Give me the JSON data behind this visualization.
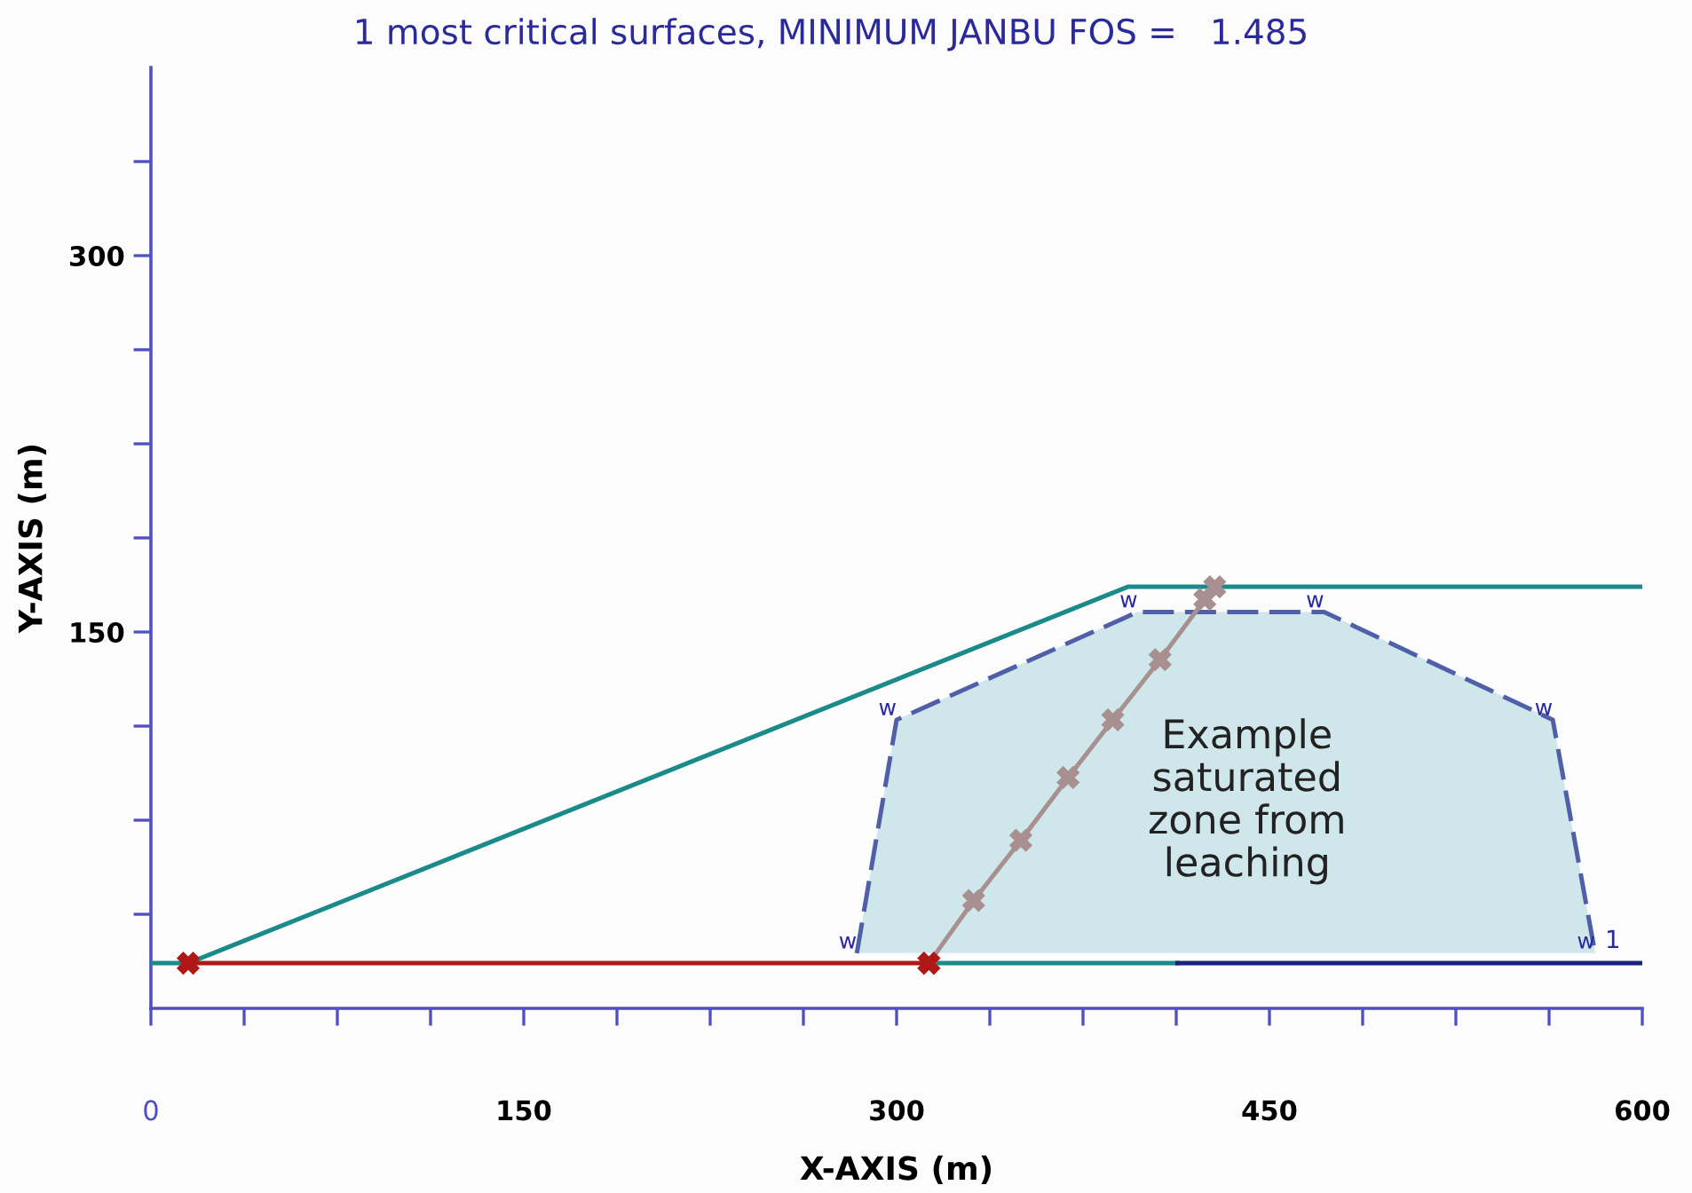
{
  "chart_data": {
    "type": "line",
    "title": "1 most critical surfaces, MINIMUM JANBU FOS =   1.485",
    "xlabel": "X-AXIS (m)",
    "ylabel": "Y-AXIS (m)",
    "xlim": [
      0,
      600
    ],
    "ylim": [
      0,
      375
    ],
    "xticks": [
      0,
      {
        "value": 37.5,
        "label": null
      },
      {
        "value": 75,
        "label": null
      },
      {
        "value": 112.5,
        "label": null
      },
      150,
      {
        "value": 187.5,
        "label": null
      },
      {
        "value": 225,
        "label": null
      },
      {
        "value": 262.5,
        "label": null
      },
      300,
      {
        "value": 337.5,
        "label": null
      },
      {
        "value": 375,
        "label": null
      },
      {
        "value": 412.5,
        "label": null
      },
      450,
      {
        "value": 487.5,
        "label": null
      },
      {
        "value": 525,
        "label": null
      },
      {
        "value": 562.5,
        "label": null
      },
      600
    ],
    "yticks": [
      {
        "value": 37.5,
        "label": null
      },
      {
        "value": 75,
        "label": null
      },
      {
        "value": 112.5,
        "label": null
      },
      150,
      {
        "value": 187.5,
        "label": null
      },
      {
        "value": 225,
        "label": null
      },
      {
        "value": 262.5,
        "label": null
      },
      300,
      {
        "value": 337.5,
        "label": null
      }
    ],
    "grid": false,
    "legend": false,
    "series": [
      {
        "type": "area",
        "color": "#cfe6ea",
        "line_style": "dashed",
        "x": [
          284,
          300,
          397,
          472,
          564,
          581
        ],
        "values": [
          22,
          115,
          158,
          158,
          115,
          22
        ]
      },
      {
        "color": "#1a8a8a",
        "line_style": "solid",
        "marker": "none",
        "x": [
          0,
          15
        ],
        "values": [
          18,
          18
        ]
      },
      {
        "color": "#1a8a8a",
        "line_style": "solid",
        "marker": "none",
        "x": [
          313,
          413
        ],
        "values": [
          18,
          18
        ]
      },
      {
        "color": "#1a237e",
        "line_style": "solid",
        "marker": "none",
        "x": [
          413,
          600
        ],
        "values": [
          18,
          18
        ]
      },
      {
        "color": "#1a8a8a",
        "line_style": "solid",
        "marker": "none",
        "x": [
          15,
          393,
          600
        ],
        "values": [
          18,
          168,
          168
        ]
      },
      {
        "color": "#a89090",
        "line_style": "solid",
        "marker": "cross",
        "x": [
          313,
          331,
          350,
          369,
          387,
          406,
          424,
          428
        ],
        "values": [
          18,
          43,
          67,
          92,
          115,
          139,
          163,
          168
        ]
      },
      {
        "color": "#b01818",
        "line_style": "solid",
        "marker": "cross",
        "x": [
          15,
          313
        ],
        "values": [
          18,
          18
        ]
      }
    ],
    "annotations": [
      {
        "text": "w",
        "x": 284,
        "y": 22
      },
      {
        "text": "w",
        "x": 300,
        "y": 115
      },
      {
        "text": "w",
        "x": 397,
        "y": 158
      },
      {
        "text": "w",
        "x": 472,
        "y": 158
      },
      {
        "text": "w",
        "x": 564,
        "y": 115
      },
      {
        "text": "w",
        "x": 581,
        "y": 22
      },
      "1",
      "Example\nsaturated\nzone from\nleaching"
    ]
  }
}
